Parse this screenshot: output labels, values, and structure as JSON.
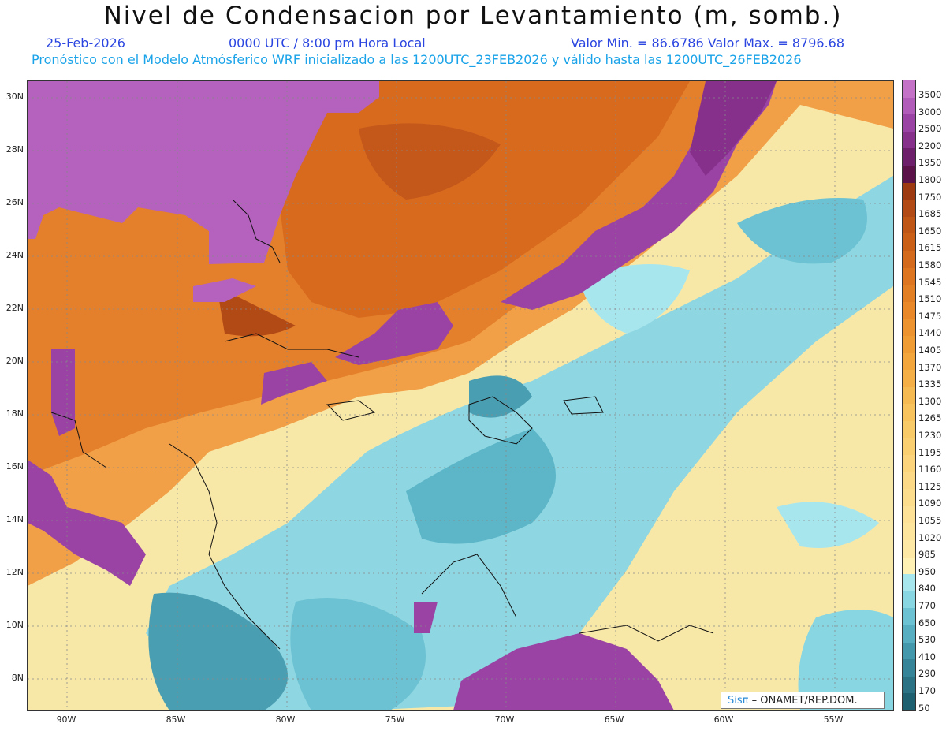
{
  "header": {
    "title": "Nivel de Condensacion por Levantamiento (m, somb.)",
    "date": "25-Feb-2026",
    "time": "0000 UTC / 8:00 pm Hora Local",
    "minmax": "Valor Min. = 86.6786   Valor Max. = 8796.68",
    "forecast": "Pronóstico con el Modelo Atmósferico WRF inicializado a las 1200UTC_23FEB2026 y válido hasta las  1200UTC_26FEB2026"
  },
  "map": {
    "lat_labels": [
      "30N",
      "28N",
      "26N",
      "24N",
      "22N",
      "20N",
      "18N",
      "16N",
      "14N",
      "12N",
      "10N",
      "8N"
    ],
    "lon_labels": [
      "90W",
      "85W",
      "80W",
      "75W",
      "70W",
      "65W",
      "60W",
      "55W"
    ]
  },
  "colorbar": {
    "levels": [
      "3500",
      "3000",
      "2500",
      "2200",
      "1950",
      "1800",
      "1750",
      "1685",
      "1650",
      "1615",
      "1580",
      "1545",
      "1510",
      "1475",
      "1440",
      "1405",
      "1370",
      "1335",
      "1300",
      "1265",
      "1230",
      "1195",
      "1160",
      "1125",
      "1090",
      "1055",
      "1020",
      "985",
      "950",
      "840",
      "770",
      "650",
      "530",
      "410",
      "290",
      "170",
      "50"
    ],
    "colors": [
      "#c472c8",
      "#b05cb8",
      "#9a43a4",
      "#86308c",
      "#6e1f6c",
      "#5a1248",
      "#9e3a12",
      "#b24a16",
      "#c05616",
      "#ca6018",
      "#d46a1c",
      "#dc7420",
      "#e27e24",
      "#e88828",
      "#ec922e",
      "#f09c34",
      "#f2a63c",
      "#f4b046",
      "#f6ba52",
      "#f8c25c",
      "#f9ca68",
      "#facf72",
      "#fbd47c",
      "#fcd986",
      "#fcdd8e",
      "#fde196",
      "#fde59e",
      "#fee8a6",
      "#fff0b4",
      "#a8e6ee",
      "#88d6e2",
      "#6cc2d2",
      "#56aec0",
      "#4498ac",
      "#368498",
      "#2a7284",
      "#1f6070"
    ]
  },
  "credit": {
    "sis": "Sisπ",
    "org": "–  ONAMET/REP.DOM."
  }
}
